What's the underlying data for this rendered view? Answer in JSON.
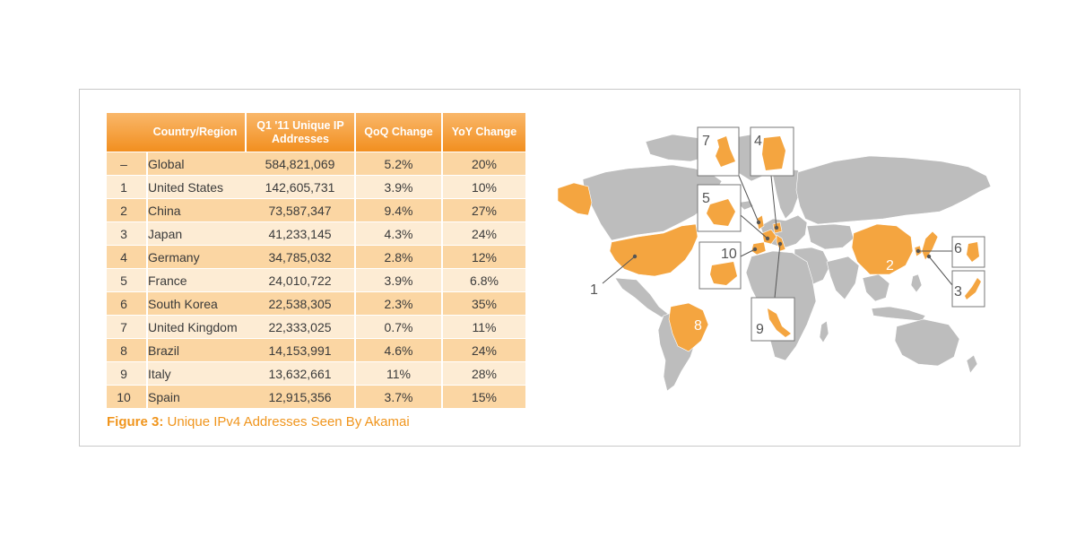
{
  "table": {
    "headers": [
      "",
      "Country/Region",
      "Q1 '11 Unique IP Addresses",
      "QoQ Change",
      "YoY Change"
    ],
    "rows": [
      {
        "rank": "–",
        "name": "Global",
        "ip": "584,821,069",
        "qoq": "5.2%",
        "yoy": "20%"
      },
      {
        "rank": "1",
        "name": "United States",
        "ip": "142,605,731",
        "qoq": "3.9%",
        "yoy": "10%"
      },
      {
        "rank": "2",
        "name": "China",
        "ip": "73,587,347",
        "qoq": "9.4%",
        "yoy": "27%"
      },
      {
        "rank": "3",
        "name": "Japan",
        "ip": "41,233,145",
        "qoq": "4.3%",
        "yoy": "24%"
      },
      {
        "rank": "4",
        "name": "Germany",
        "ip": "34,785,032",
        "qoq": "2.8%",
        "yoy": "12%"
      },
      {
        "rank": "5",
        "name": "France",
        "ip": "24,010,722",
        "qoq": "3.9%",
        "yoy": "6.8%"
      },
      {
        "rank": "6",
        "name": "South Korea",
        "ip": "22,538,305",
        "qoq": "2.3%",
        "yoy": "35%"
      },
      {
        "rank": "7",
        "name": "United Kingdom",
        "ip": "22,333,025",
        "qoq": "0.7%",
        "yoy": "11%"
      },
      {
        "rank": "8",
        "name": "Brazil",
        "ip": "14,153,991",
        "qoq": "4.6%",
        "yoy": "24%"
      },
      {
        "rank": "9",
        "name": "Italy",
        "ip": "13,632,661",
        "qoq": "11%",
        "yoy": "28%"
      },
      {
        "rank": "10",
        "name": "Spain",
        "ip": "12,915,356",
        "qoq": "3.7%",
        "yoy": "15%"
      }
    ]
  },
  "caption": {
    "label": "Figure 3:",
    "text": "Unique IPv4 Addresses Seen By Akamai"
  },
  "map": {
    "labels": {
      "us": "1",
      "china": "2",
      "japan": "3",
      "germany": "4",
      "france": "5",
      "south_korea": "6",
      "uk": "7",
      "brazil": "8",
      "italy": "9",
      "spain": "10"
    }
  },
  "colors": {
    "accent": "#f0951d",
    "highlight": "#f4a540",
    "land": "#bdbdbd",
    "row_dark": "#fbd6a3",
    "row_light": "#fdecd4"
  }
}
